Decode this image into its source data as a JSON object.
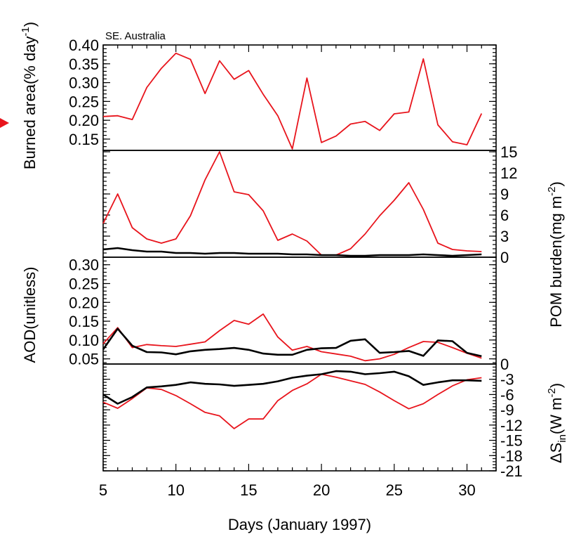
{
  "chart_data": {
    "type": "line",
    "region_title": "SE. Australia",
    "xlabel": "Days (January 1997)",
    "xlim": [
      5,
      32
    ],
    "x_ticks": [
      5,
      10,
      15,
      20,
      25,
      30
    ],
    "x_tick_labels": [
      "5",
      "10",
      "15",
      "20",
      "25",
      "30"
    ],
    "x": [
      5,
      6,
      7,
      8,
      9,
      10,
      11,
      12,
      13,
      14,
      15,
      16,
      17,
      18,
      19,
      20,
      21,
      22,
      23,
      24,
      25,
      26,
      27,
      28,
      29,
      30,
      31
    ],
    "panels": [
      {
        "id": "burned-area",
        "ylabel_main": "Burned area(% day",
        "ylabel_sup": "-1",
        "ylabel_tail": ")",
        "side": "left",
        "ylim": [
          0.12,
          0.4
        ],
        "y_ticks": [
          0.15,
          0.2,
          0.25,
          0.3,
          0.35,
          0.4
        ],
        "y_tick_labels": [
          "0.15",
          "0.20",
          "0.25",
          "0.30",
          "0.35",
          "0.40"
        ],
        "series": [
          {
            "color": "#e8141c",
            "values": [
              0.21,
              0.212,
              0.202,
              0.287,
              0.338,
              0.378,
              0.362,
              0.271,
              0.358,
              0.309,
              0.332,
              0.269,
              0.212,
              0.124,
              0.312,
              0.141,
              0.158,
              0.19,
              0.197,
              0.173,
              0.217,
              0.222,
              0.363,
              0.188,
              0.143,
              0.135,
              0.218
            ]
          }
        ]
      },
      {
        "id": "pom-burden",
        "ylabel_main": "POM burden(mg m",
        "ylabel_sup": "-2",
        "ylabel_tail": ")",
        "side": "right",
        "ylim": [
          0,
          15
        ],
        "y_ticks": [
          0,
          3,
          6,
          9,
          12,
          15
        ],
        "y_tick_labels": [
          "0",
          "3",
          "6",
          "9",
          "12",
          "15"
        ],
        "series": [
          {
            "color": "#e8141c",
            "values": [
              4.8,
              9.0,
              4.2,
              2.6,
              2.0,
              2.6,
              5.9,
              11.0,
              15.0,
              9.3,
              8.9,
              6.6,
              2.4,
              3.3,
              2.3,
              0.3,
              0.3,
              1.2,
              3.3,
              5.9,
              8.1,
              10.6,
              6.8,
              2.0,
              1.1,
              0.9,
              0.8
            ]
          },
          {
            "color": "#000000",
            "values": [
              1.1,
              1.3,
              1.0,
              0.8,
              0.8,
              0.6,
              0.6,
              0.5,
              0.6,
              0.6,
              0.5,
              0.5,
              0.5,
              0.4,
              0.4,
              0.3,
              0.3,
              0.2,
              0.2,
              0.3,
              0.3,
              0.3,
              0.4,
              0.3,
              0.2,
              0.3,
              0.4
            ]
          }
        ]
      },
      {
        "id": "aod",
        "ylabel_main": "AOD(unitless)",
        "ylabel_sup": "",
        "ylabel_tail": "",
        "side": "left",
        "ylim": [
          0.04,
          0.32
        ],
        "y_ticks": [
          0.05,
          0.1,
          0.15,
          0.2,
          0.25,
          0.3
        ],
        "y_tick_labels": [
          "0.05",
          "0.10",
          "0.15",
          "0.20",
          "0.25",
          "0.30"
        ],
        "series": [
          {
            "color": "#e8141c",
            "values": [
              0.09,
              0.133,
              0.08,
              0.088,
              0.085,
              0.083,
              0.089,
              0.095,
              0.125,
              0.152,
              0.142,
              0.169,
              0.108,
              0.073,
              0.083,
              0.069,
              0.063,
              0.057,
              0.045,
              0.05,
              0.062,
              0.08,
              0.096,
              0.094,
              0.08,
              0.065,
              0.052
            ]
          },
          {
            "color": "#000000",
            "values": [
              0.075,
              0.13,
              0.085,
              0.068,
              0.067,
              0.062,
              0.07,
              0.074,
              0.076,
              0.079,
              0.074,
              0.064,
              0.061,
              0.061,
              0.074,
              0.078,
              0.079,
              0.098,
              0.102,
              0.066,
              0.068,
              0.071,
              0.058,
              0.099,
              0.097,
              0.066,
              0.057
            ]
          }
        ]
      },
      {
        "id": "delta-s",
        "ylabel_main": "ΔS",
        "ylabel_sub": "in",
        "ylabel_after": "(W m",
        "ylabel_sup": "-2",
        "ylabel_tail": ")",
        "side": "right",
        "ylim": [
          -21,
          0
        ],
        "y_ticks": [
          0,
          -3,
          -6,
          -9,
          -12,
          -15,
          -18,
          -21
        ],
        "y_tick_labels": [
          "0",
          "-3",
          "-6",
          "-9",
          "-12",
          "-15",
          "-18",
          "-21"
        ],
        "series": [
          {
            "color": "#e8141c",
            "values": [
              -7.5,
              -8.7,
              -6.8,
              -4.7,
              -5.0,
              -6.2,
              -7.8,
              -9.5,
              -10.2,
              -12.7,
              -10.8,
              -10.8,
              -7.2,
              -5.2,
              -3.9,
              -2.0,
              -2.6,
              -3.3,
              -4.0,
              -5.5,
              -7.2,
              -8.8,
              -7.8,
              -6.0,
              -4.3,
              -3.1,
              -2.7
            ]
          },
          {
            "color": "#000000",
            "values": [
              -6.0,
              -7.8,
              -6.5,
              -4.6,
              -4.4,
              -4.1,
              -3.6,
              -3.9,
              -4.0,
              -4.3,
              -4.1,
              -3.9,
              -3.4,
              -2.7,
              -2.3,
              -2.0,
              -1.4,
              -1.5,
              -2.0,
              -1.8,
              -1.5,
              -2.4,
              -4.1,
              -3.6,
              -3.2,
              -3.2,
              -3.3
            ]
          }
        ]
      }
    ]
  }
}
